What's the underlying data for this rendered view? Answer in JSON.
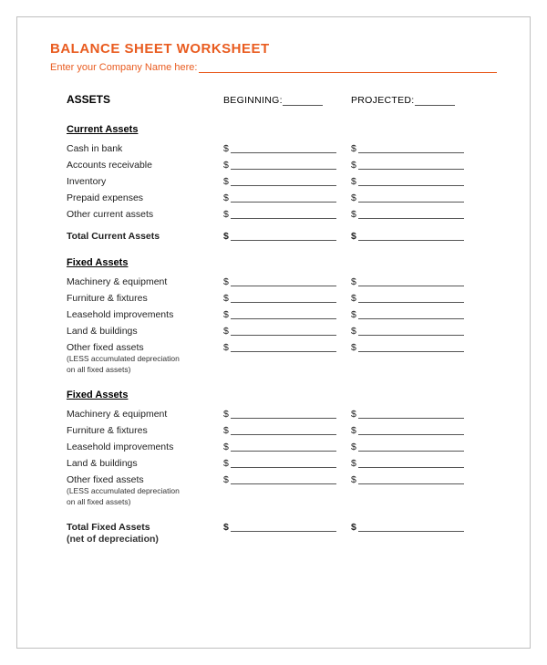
{
  "title": "BALANCE SHEET WORKSHEET",
  "company_prompt": "Enter your Company Name here:",
  "col_headers": {
    "main": "ASSETS",
    "beginning": "BEGINNING:",
    "projected": "PROJECTED:"
  },
  "currency": "$",
  "sections": {
    "current": {
      "heading": "Current Assets",
      "rows": [
        {
          "label": "Cash in bank"
        },
        {
          "label": "Accounts receivable"
        },
        {
          "label": "Inventory"
        },
        {
          "label": "Prepaid expenses"
        },
        {
          "label": "Other current assets"
        }
      ],
      "total_label": "Total Current Assets"
    },
    "fixed1": {
      "heading": "Fixed Assets",
      "rows": [
        {
          "label": "Machinery & equipment"
        },
        {
          "label": "Furniture & fixtures"
        },
        {
          "label": "Leasehold improvements"
        },
        {
          "label": "Land & buildings"
        },
        {
          "label": "Other fixed assets",
          "note1": "(LESS accumulated depreciation",
          "note2": "on all fixed assets)"
        }
      ]
    },
    "fixed2": {
      "heading": "Fixed Assets",
      "rows": [
        {
          "label": "Machinery & equipment"
        },
        {
          "label": "Furniture & fixtures"
        },
        {
          "label": "Leasehold improvements"
        },
        {
          "label": "Land & buildings"
        },
        {
          "label": "Other fixed assets",
          "note1": "(LESS accumulated depreciation",
          "note2": "on all fixed assets)"
        }
      ]
    },
    "fixed_total": {
      "label": "Total Fixed Assets",
      "note": "(net of depreciation)"
    }
  },
  "colors": {
    "accent": "#e95c20",
    "border": "#bfbfbf",
    "line": "#555555",
    "text": "#222222",
    "bg": "#ffffff"
  }
}
